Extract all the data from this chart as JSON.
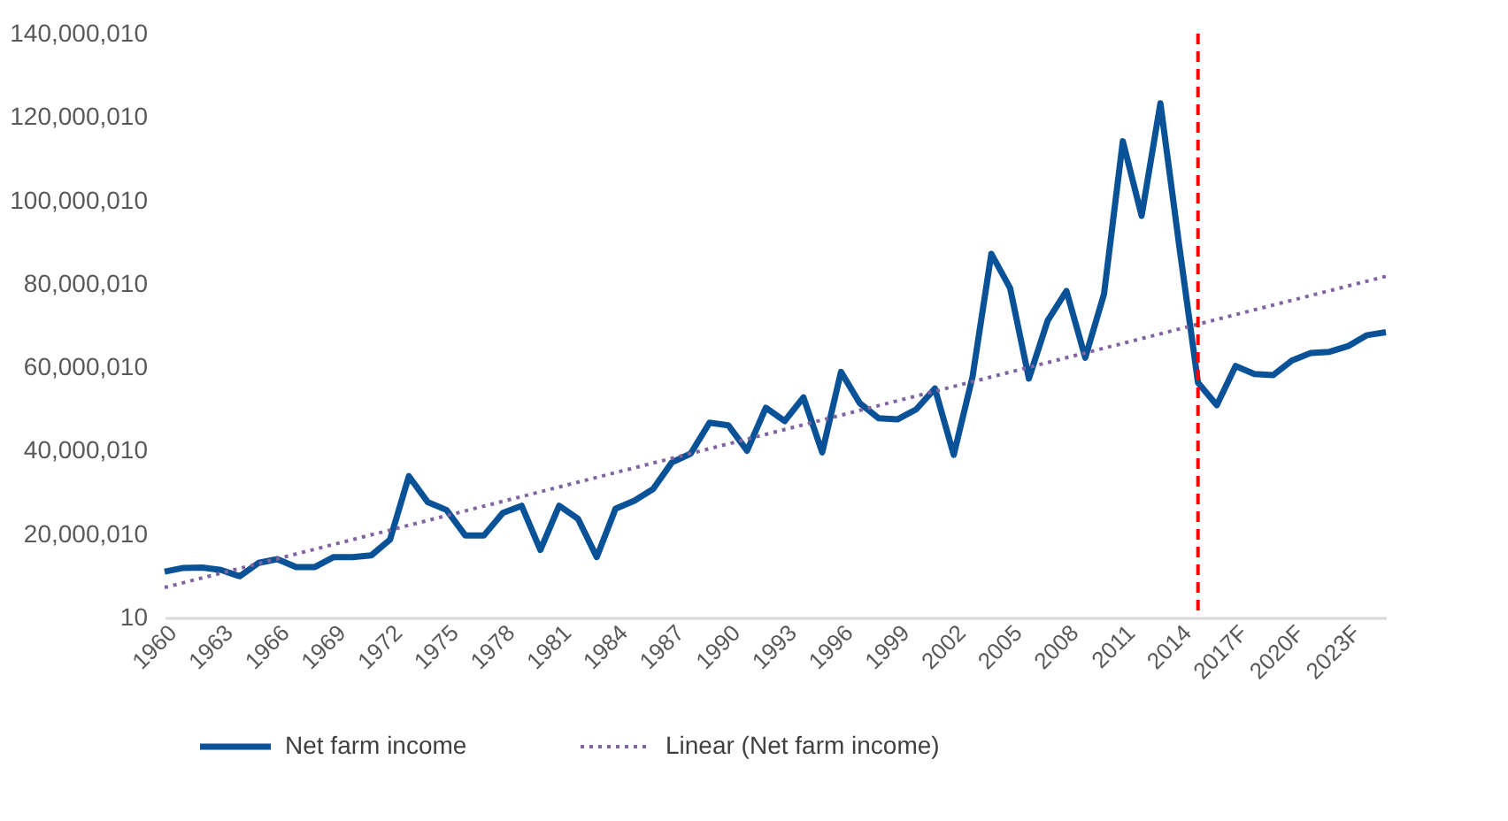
{
  "chart_data": {
    "type": "line",
    "x": [
      1960,
      1961,
      1962,
      1963,
      1964,
      1965,
      1966,
      1967,
      1968,
      1969,
      1970,
      1971,
      1972,
      1973,
      1974,
      1975,
      1976,
      1977,
      1978,
      1979,
      1980,
      1981,
      1982,
      1983,
      1984,
      1985,
      1986,
      1987,
      1988,
      1989,
      1990,
      1991,
      1992,
      1993,
      1994,
      1995,
      1996,
      1997,
      1998,
      1999,
      2000,
      2001,
      2002,
      2003,
      2004,
      2005,
      2006,
      2007,
      2008,
      2009,
      2010,
      2011,
      2012,
      2013,
      2014,
      2015,
      2016,
      2017,
      2018,
      2019,
      2020,
      2021,
      2022,
      2023,
      2024,
      2025
    ],
    "series": [
      {
        "name": "Net farm income",
        "color": "#0a5297",
        "line_style": "solid",
        "values": [
          11000000,
          11900000,
          12000000,
          11400000,
          9900000,
          13100000,
          14000000,
          12100000,
          12100000,
          14500000,
          14500000,
          14900000,
          18700000,
          33900000,
          27700000,
          25800000,
          19700000,
          19700000,
          25100000,
          26800000,
          16200000,
          26800000,
          23700000,
          14500000,
          26100000,
          28000000,
          30800000,
          37200000,
          39300000,
          46700000,
          46100000,
          40000000,
          50300000,
          47100000,
          52800000,
          39600000,
          58900000,
          51400000,
          47800000,
          47500000,
          49900000,
          54900000,
          39000000,
          57700000,
          87200000,
          79000000,
          57300000,
          71200000,
          78300000,
          62300000,
          77600000,
          114200000,
          96300000,
          123300000,
          89200000,
          56300000,
          50900000,
          60300000,
          58400000,
          58100000,
          61600000,
          63400000,
          63700000,
          65100000,
          67700000,
          68400000
        ]
      },
      {
        "name": "Linear (Net farm income)",
        "color": "#8064a2",
        "line_style": "dotted",
        "x": [
          1960,
          2025
        ],
        "values": [
          7200000,
          81800000
        ]
      }
    ],
    "xlim": [
      1960,
      2025
    ],
    "xticks": [
      {
        "value": 1960,
        "label": "1960"
      },
      {
        "value": 1963,
        "label": "1963"
      },
      {
        "value": 1966,
        "label": "1966"
      },
      {
        "value": 1969,
        "label": "1969"
      },
      {
        "value": 1972,
        "label": "1972"
      },
      {
        "value": 1975,
        "label": "1975"
      },
      {
        "value": 1978,
        "label": "1978"
      },
      {
        "value": 1981,
        "label": "1981"
      },
      {
        "value": 1984,
        "label": "1984"
      },
      {
        "value": 1987,
        "label": "1987"
      },
      {
        "value": 1990,
        "label": "1990"
      },
      {
        "value": 1993,
        "label": "1993"
      },
      {
        "value": 1996,
        "label": "1996"
      },
      {
        "value": 1999,
        "label": "1999"
      },
      {
        "value": 2002,
        "label": "2002"
      },
      {
        "value": 2005,
        "label": "2005"
      },
      {
        "value": 2008,
        "label": "2008"
      },
      {
        "value": 2011,
        "label": "2011"
      },
      {
        "value": 2014,
        "label": "2014"
      },
      {
        "value": 2017,
        "label": "2017F"
      },
      {
        "value": 2020,
        "label": "2020F"
      },
      {
        "value": 2023,
        "label": "2023F"
      }
    ],
    "ylim": [
      10,
      140000010
    ],
    "yticks": [
      10,
      {
        "value": 20000010,
        "label": "20,000,010"
      },
      {
        "value": 40000010,
        "label": "40,000,010"
      },
      {
        "value": 60000010,
        "label": "60,000,010"
      },
      {
        "value": 80000010,
        "label": "80,000,010"
      },
      {
        "value": 100000010,
        "label": "100,000,010"
      },
      {
        "value": 120000010,
        "label": "120,000,010"
      },
      {
        "value": 140000010,
        "label": "140,000,010"
      }
    ],
    "ref_lines": [
      {
        "axis": "x",
        "value": 2015,
        "color": "#ff0000",
        "line_style": "dashed"
      }
    ],
    "grid": false,
    "legend": "bottom"
  }
}
